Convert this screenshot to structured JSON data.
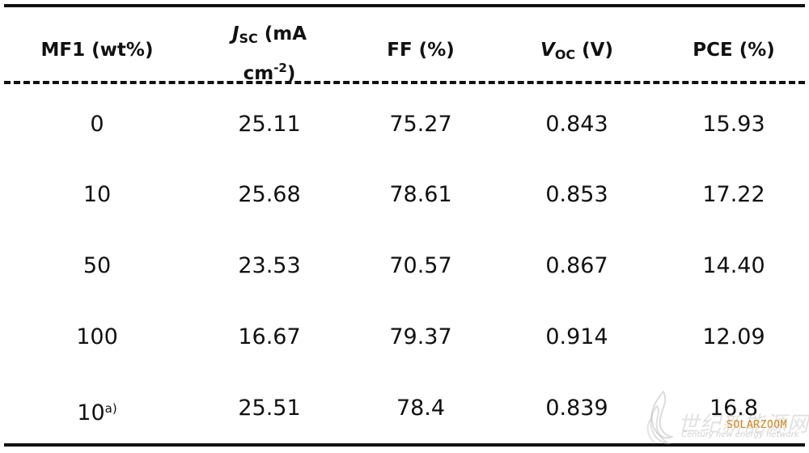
{
  "table": {
    "headers": {
      "col1": {
        "label": "MF1 (wt%)"
      },
      "col2": {
        "symbol": "J",
        "sub": "SC",
        "line1": "(mA",
        "line2a": "cm",
        "line2sup": "-2",
        "line2b": ")"
      },
      "col3": {
        "label": "FF (%)"
      },
      "col4": {
        "symbol": "V",
        "sub": "OC",
        "rest": "(V)"
      },
      "col5": {
        "label": "PCE (%)"
      }
    },
    "rows": [
      {
        "mf1": "0",
        "mf1_sup": "",
        "jsc": "25.11",
        "ff": "75.27",
        "voc": "0.843",
        "pce": "15.93"
      },
      {
        "mf1": "10",
        "mf1_sup": "",
        "jsc": "25.68",
        "ff": "78.61",
        "voc": "0.853",
        "pce": "17.22"
      },
      {
        "mf1": "50",
        "mf1_sup": "",
        "jsc": "23.53",
        "ff": "70.57",
        "voc": "0.867",
        "pce": "14.40"
      },
      {
        "mf1": "100",
        "mf1_sup": "",
        "jsc": "16.67",
        "ff": "79.37",
        "voc": "0.914",
        "pce": "12.09"
      },
      {
        "mf1": "10",
        "mf1_sup": "a)",
        "jsc": "25.51",
        "ff": "78.4",
        "voc": "0.839",
        "pce": "16.8"
      }
    ]
  },
  "watermark": {
    "cn_text": "世纪新能源网",
    "en_text": "Century new energy network",
    "brand": "SOLARZOOM",
    "brand_color": "#d4881c"
  }
}
